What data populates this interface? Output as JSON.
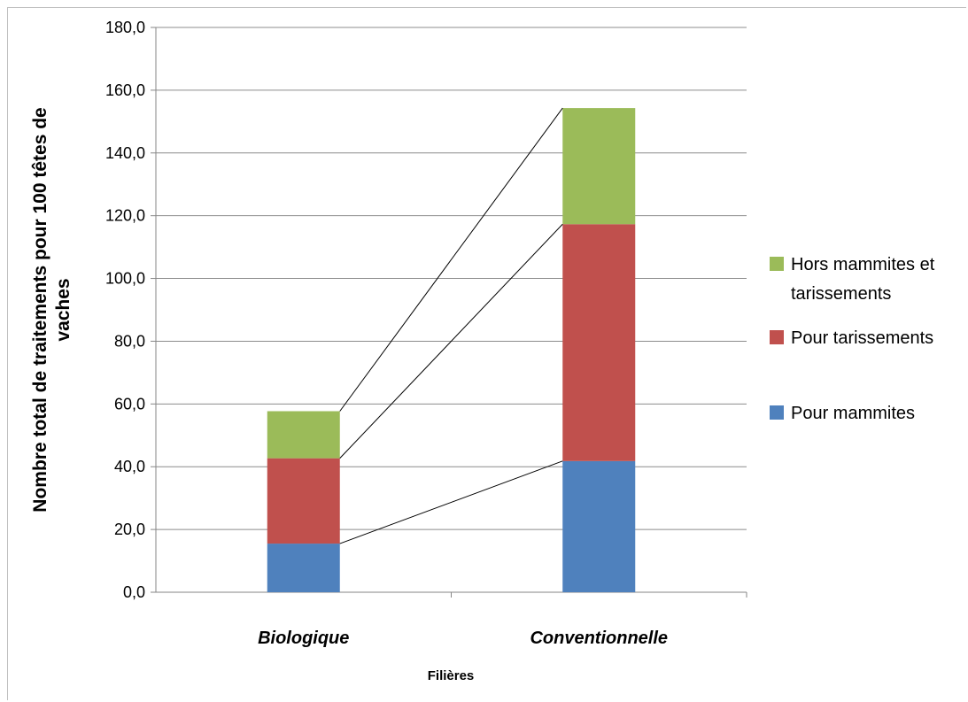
{
  "chart_data": {
    "type": "bar",
    "stacked": true,
    "categories": [
      "Biologique",
      "Conventionnelle"
    ],
    "series": [
      {
        "name": "Pour mammites",
        "color": "#4f81bd",
        "values": [
          15.5,
          41.8
        ]
      },
      {
        "name": "Pour tarissements",
        "color": "#c0504d",
        "values": [
          27.2,
          75.5
        ]
      },
      {
        "name": "Hors mammites et tarissements",
        "color": "#9bbb59",
        "values": [
          15.0,
          37.0
        ]
      }
    ],
    "xlabel": "Filières",
    "ylabel_lines": [
      "Nombre total de traitements pour 100 têtes de",
      "vaches"
    ],
    "ylim": [
      0,
      180
    ],
    "yticks": [
      "0,0",
      "20,0",
      "40,0",
      "60,0",
      "80,0",
      "100,0",
      "120,0",
      "140,0",
      "160,0",
      "180,0"
    ],
    "grid": true,
    "series_lines": true,
    "legend_position": "right",
    "legend_labels": [
      {
        "lines": [
          "Hors mammites et",
          "tarissements"
        ],
        "color": "#9bbb59"
      },
      {
        "lines": [
          "Pour tarissements"
        ],
        "color": "#c0504d"
      },
      {
        "lines": [
          "Pour mammites"
        ],
        "color": "#4f81bd"
      }
    ]
  }
}
